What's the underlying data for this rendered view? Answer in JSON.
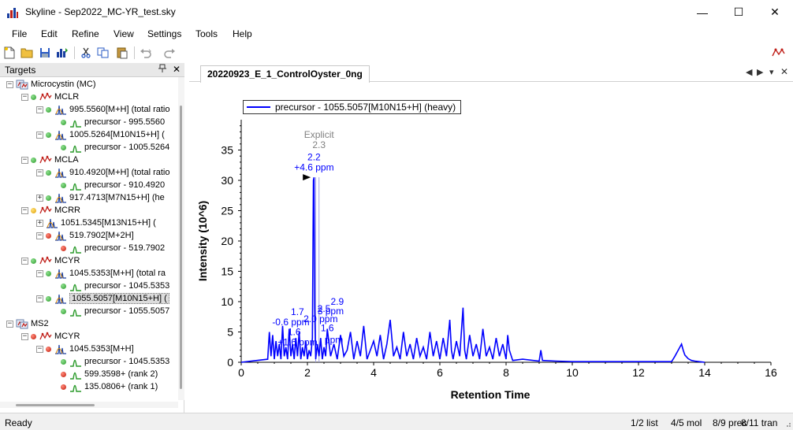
{
  "window": {
    "title": "Skyline - Sep2022_MC-YR_test.sky",
    "minimize_glyph": "—",
    "maximize_glyph": "☐",
    "close_glyph": "✕"
  },
  "menu": [
    "File",
    "Edit",
    "Refine",
    "View",
    "Settings",
    "Tools",
    "Help"
  ],
  "targets": {
    "title": "Targets",
    "pin_glyph": "📌",
    "close_glyph": "✕",
    "nodes": [
      {
        "label": "Microcystin (MC)",
        "level": 0,
        "exp": "−",
        "dot": "",
        "icon": "group-icon"
      },
      {
        "label": "MCLR",
        "level": 1,
        "exp": "−",
        "dot": "green",
        "icon": "peptide-icon"
      },
      {
        "label": "995.5560[M+H] (total ratio",
        "level": 2,
        "exp": "−",
        "dot": "green",
        "icon": "peak-icon"
      },
      {
        "label": "precursor - 995.5560",
        "level": 3,
        "exp": "",
        "dot": "green",
        "icon": "transition-icon"
      },
      {
        "label": "1005.5264[M10N15+H] (",
        "level": 2,
        "exp": "−",
        "dot": "green",
        "icon": "peak-icon"
      },
      {
        "label": "precursor - 1005.5264",
        "level": 3,
        "exp": "",
        "dot": "green",
        "icon": "transition-icon"
      },
      {
        "label": "MCLA",
        "level": 1,
        "exp": "−",
        "dot": "green",
        "icon": "peptide-icon"
      },
      {
        "label": "910.4920[M+H] (total ratio",
        "level": 2,
        "exp": "−",
        "dot": "green",
        "icon": "peak-icon"
      },
      {
        "label": "precursor - 910.4920",
        "level": 3,
        "exp": "",
        "dot": "green",
        "icon": "transition-icon"
      },
      {
        "label": "917.4713[M7N15+H] (he",
        "level": 2,
        "exp": "+",
        "dot": "green",
        "icon": "peak-icon"
      },
      {
        "label": "MCRR",
        "level": 1,
        "exp": "−",
        "dot": "orange",
        "icon": "peptide-icon"
      },
      {
        "label": "1051.5345[M13N15+H] (",
        "level": 2,
        "exp": "+",
        "dot": "",
        "icon": "peak-icon"
      },
      {
        "label": "519.7902[M+2H]",
        "level": 2,
        "exp": "−",
        "dot": "red",
        "icon": "peak-icon"
      },
      {
        "label": "precursor - 519.7902",
        "level": 3,
        "exp": "",
        "dot": "red",
        "icon": "transition-icon"
      },
      {
        "label": "MCYR",
        "level": 1,
        "exp": "−",
        "dot": "green",
        "icon": "peptide-icon"
      },
      {
        "label": "1045.5353[M+H] (total ra",
        "level": 2,
        "exp": "−",
        "dot": "green",
        "icon": "peak-icon"
      },
      {
        "label": "precursor - 1045.5353",
        "level": 3,
        "exp": "",
        "dot": "green",
        "icon": "transition-icon"
      },
      {
        "label": "1055.5057[M10N15+H] (",
        "level": 2,
        "exp": "−",
        "dot": "green",
        "icon": "peak-icon",
        "selected": true
      },
      {
        "label": "precursor - 1055.5057",
        "level": 3,
        "exp": "",
        "dot": "green",
        "icon": "transition-icon"
      },
      {
        "label": "MS2",
        "level": 0,
        "exp": "−",
        "dot": "",
        "icon": "group-icon"
      },
      {
        "label": "MCYR",
        "level": 1,
        "exp": "−",
        "dot": "red",
        "icon": "peptide-icon"
      },
      {
        "label": "1045.5353[M+H]",
        "level": 2,
        "exp": "−",
        "dot": "red",
        "icon": "peak-icon"
      },
      {
        "label": "precursor - 1045.5353",
        "level": 3,
        "exp": "",
        "dot": "green",
        "icon": "transition-icon"
      },
      {
        "label": "599.3598+ (rank 2)",
        "level": 3,
        "exp": "",
        "dot": "red",
        "icon": "transition-icon"
      },
      {
        "label": "135.0806+ (rank 1)",
        "level": 3,
        "exp": "",
        "dot": "red",
        "icon": "transition-icon"
      }
    ]
  },
  "document": {
    "tab_label": "20220923_E_1_ControlOyster_0ng",
    "nav_prev": "◀",
    "nav_next": "▶",
    "nav_menu": "▾",
    "nav_close": "✕"
  },
  "chart_data": {
    "type": "line",
    "xlabel": "Retention Time",
    "ylabel": "Intensity (10^6)",
    "xlim": [
      0,
      16
    ],
    "ylim": [
      0,
      40
    ],
    "xticks": [
      0,
      2,
      4,
      6,
      8,
      10,
      12,
      14,
      16
    ],
    "yticks": [
      0,
      5,
      10,
      15,
      20,
      25,
      30,
      35
    ],
    "legend": {
      "placement": "top-left",
      "entries": [
        "precursor - 1055.5057[M10N15+H] (heavy)"
      ]
    },
    "series": [
      {
        "name": "precursor - 1055.5057[M10N15+H] (heavy)",
        "color": "#0000ff",
        "x": [
          0.0,
          0.8,
          0.85,
          0.9,
          0.95,
          1.0,
          1.05,
          1.1,
          1.15,
          1.2,
          1.25,
          1.3,
          1.35,
          1.4,
          1.45,
          1.5,
          1.55,
          1.6,
          1.65,
          1.7,
          1.75,
          1.8,
          1.85,
          1.9,
          1.95,
          2.0,
          2.05,
          2.1,
          2.15,
          2.18,
          2.2,
          2.22,
          2.25,
          2.3,
          2.35,
          2.4,
          2.45,
          2.5,
          2.55,
          2.6,
          2.7,
          2.8,
          2.9,
          3.0,
          3.1,
          3.2,
          3.3,
          3.4,
          3.5,
          3.6,
          3.7,
          3.8,
          3.9,
          4.0,
          4.1,
          4.2,
          4.3,
          4.4,
          4.5,
          4.6,
          4.7,
          4.8,
          4.9,
          5.0,
          5.1,
          5.2,
          5.3,
          5.4,
          5.5,
          5.6,
          5.7,
          5.8,
          5.9,
          6.0,
          6.1,
          6.2,
          6.3,
          6.35,
          6.4,
          6.5,
          6.6,
          6.7,
          6.75,
          6.8,
          6.9,
          7.0,
          7.1,
          7.2,
          7.3,
          7.4,
          7.5,
          7.6,
          7.7,
          7.8,
          7.9,
          8.0,
          8.05,
          8.1,
          8.2,
          8.5,
          9.0,
          9.05,
          9.1,
          9.5,
          10.0,
          11.0,
          12.0,
          13.0,
          13.1,
          13.2,
          13.25,
          13.3,
          13.35,
          13.4,
          13.5,
          13.6,
          13.7,
          14.0
        ],
        "y": [
          0.0,
          0.5,
          5.0,
          1.0,
          4.5,
          0.5,
          3.5,
          1.0,
          3.0,
          0.5,
          6.0,
          1.0,
          2.5,
          0.5,
          5.5,
          1.0,
          3.0,
          0.5,
          4.0,
          1.0,
          5.0,
          0.5,
          2.5,
          1.0,
          3.5,
          0.5,
          2.0,
          1.0,
          4.0,
          30.0,
          30.5,
          9.0,
          0.5,
          3.0,
          1.0,
          4.0,
          0.5,
          2.5,
          1.0,
          5.5,
          1.0,
          3.0,
          0.5,
          4.5,
          1.0,
          2.0,
          5.0,
          0.5,
          3.5,
          1.0,
          6.0,
          0.5,
          2.0,
          3.5,
          1.0,
          4.5,
          0.5,
          3.0,
          7.0,
          1.0,
          2.5,
          0.5,
          5.0,
          1.0,
          3.0,
          0.5,
          4.0,
          1.0,
          2.5,
          0.5,
          5.0,
          1.0,
          3.5,
          0.5,
          4.0,
          1.0,
          7.0,
          2.0,
          0.5,
          3.5,
          1.0,
          9.0,
          2.0,
          0.5,
          4.5,
          1.0,
          3.0,
          0.5,
          5.5,
          1.0,
          2.5,
          0.5,
          4.0,
          1.0,
          3.0,
          0.5,
          4.5,
          2.0,
          0.3,
          0.5,
          0.2,
          2.0,
          0.3,
          0.2,
          0.1,
          0.1,
          0.1,
          0.1,
          1.0,
          2.0,
          2.5,
          3.0,
          2.0,
          1.2,
          0.6,
          0.3,
          0.2,
          0.0
        ]
      }
    ],
    "annotations": [
      {
        "text": "Explicit",
        "x": 2.35,
        "y": 37.0,
        "color": "#808080"
      },
      {
        "text": "2.3",
        "x": 2.35,
        "y": 35.3,
        "color": "#808080"
      },
      {
        "text": "2.2",
        "x": 2.2,
        "y": 33.3,
        "color": "#0000ff"
      },
      {
        "text": "+4.6 ppm",
        "x": 2.2,
        "y": 31.6,
        "color": "#0000ff"
      },
      {
        "text": "2.9",
        "x": 2.9,
        "y": 9.5,
        "color": "#0000ff"
      },
      {
        "text": "2.5",
        "x": 2.5,
        "y": 8.3,
        "color": "#0000ff"
      },
      {
        "text": "3 ppm",
        "x": 2.7,
        "y": 7.9,
        "color": "#0000ff"
      },
      {
        "text": "2.0 ppm",
        "x": 2.4,
        "y": 6.6,
        "color": "#0000ff"
      },
      {
        "text": "1.7",
        "x": 1.7,
        "y": 7.8,
        "color": "#0000ff"
      },
      {
        "text": "-0.6 ppm",
        "x": 1.5,
        "y": 6.1,
        "color": "#0000ff"
      },
      {
        "text": "1.6",
        "x": 1.6,
        "y": 4.5,
        "color": "#0000ff"
      },
      {
        "text": "1.6",
        "x": 2.6,
        "y": 5.1,
        "color": "#0000ff"
      },
      {
        "text": "+1.6 ppm",
        "x": 1.7,
        "y": 2.8,
        "color": "#0000ff"
      },
      {
        "text": "ppm",
        "x": 2.8,
        "y": 3.2,
        "color": "#0000ff"
      }
    ],
    "marker": {
      "type": "triangle-right",
      "x": 2.1,
      "y": 30.5,
      "color": "#000000"
    },
    "boundary_lines": [
      2.25,
      2.35
    ]
  },
  "status": {
    "ready": "Ready",
    "list": "1/2 list",
    "mol": "4/5 mol",
    "prec": "8/9 prec",
    "tran": "8/11 tran"
  }
}
